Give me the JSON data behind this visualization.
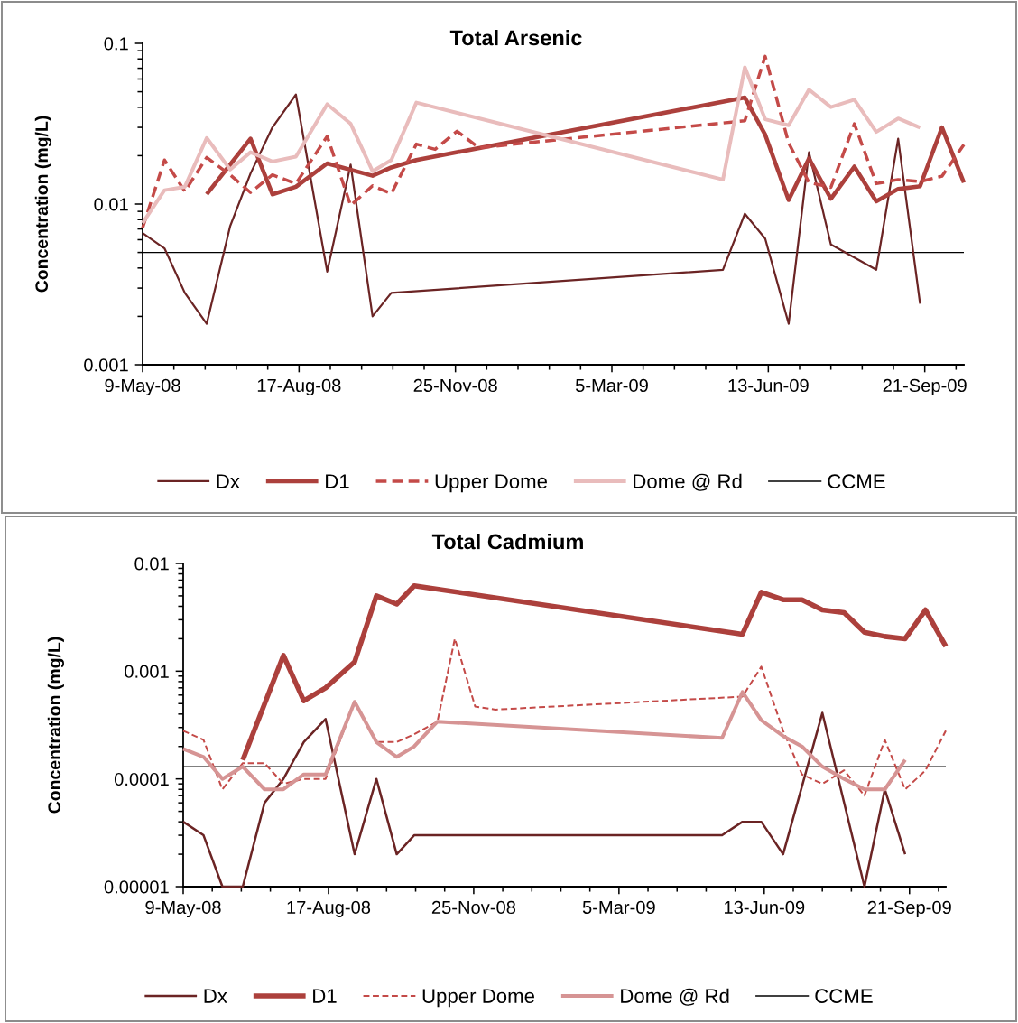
{
  "chart_data": [
    {
      "type": "line",
      "title": "Total Arsenic",
      "ylabel": "Concentration (mg/L)",
      "log": "y",
      "legend": "bottom",
      "xlim": [
        "2008-05-09",
        "2009-10-16"
      ],
      "xticks": [
        {
          "value": "2008-05-09",
          "label": "9-May-08"
        },
        {
          "value": "2008-05-29",
          "label": null
        },
        {
          "value": "2008-06-18",
          "label": null
        },
        {
          "value": "2008-07-08",
          "label": null
        },
        {
          "value": "2008-07-28",
          "label": null
        },
        {
          "value": "2008-08-17",
          "label": "17-Aug-08"
        },
        {
          "value": "2008-09-06",
          "label": null
        },
        {
          "value": "2008-09-26",
          "label": null
        },
        {
          "value": "2008-10-16",
          "label": null
        },
        {
          "value": "2008-11-05",
          "label": null
        },
        {
          "value": "2008-11-25",
          "label": "25-Nov-08"
        },
        {
          "value": "2008-12-15",
          "label": null
        },
        {
          "value": "2009-01-04",
          "label": null
        },
        {
          "value": "2009-01-24",
          "label": null
        },
        {
          "value": "2009-02-13",
          "label": null
        },
        {
          "value": "2009-03-05",
          "label": "5-Mar-09"
        },
        {
          "value": "2009-03-25",
          "label": null
        },
        {
          "value": "2009-04-14",
          "label": null
        },
        {
          "value": "2009-05-04",
          "label": null
        },
        {
          "value": "2009-05-24",
          "label": null
        },
        {
          "value": "2009-06-13",
          "label": "13-Jun-09"
        },
        {
          "value": "2009-07-03",
          "label": null
        },
        {
          "value": "2009-07-23",
          "label": null
        },
        {
          "value": "2009-08-12",
          "label": null
        },
        {
          "value": "2009-09-01",
          "label": null
        },
        {
          "value": "2009-09-21",
          "label": "21-Sep-09"
        },
        {
          "value": "2009-10-11",
          "label": null
        }
      ],
      "ylim": [
        0.001,
        0.1
      ],
      "yticks": [
        0.001,
        {
          "value": 0.002,
          "label": null
        },
        {
          "value": 0.003,
          "label": null
        },
        {
          "value": 0.004,
          "label": null
        },
        {
          "value": 0.005,
          "label": null
        },
        {
          "value": 0.006,
          "label": null
        },
        {
          "value": 0.007,
          "label": null
        },
        {
          "value": 0.008,
          "label": null
        },
        {
          "value": 0.009,
          "label": null
        },
        0.01,
        {
          "value": 0.02,
          "label": null
        },
        {
          "value": 0.03,
          "label": null
        },
        {
          "value": 0.04,
          "label": null
        },
        {
          "value": 0.05,
          "label": null
        },
        {
          "value": 0.06,
          "label": null
        },
        {
          "value": 0.07,
          "label": null
        },
        {
          "value": 0.08,
          "label": null
        },
        {
          "value": 0.09,
          "label": null
        },
        0.1
      ],
      "series": [
        {
          "name": "Dx",
          "color": "#6b2424",
          "line_style": "solid",
          "x": [
            "2008-05-09",
            "2008-05-23",
            "2008-06-05",
            "2008-06-19",
            "2008-07-04",
            "2008-07-17",
            "2008-07-31",
            "2008-08-15",
            "2008-09-04",
            "2008-09-19",
            "2008-10-03",
            "2008-10-15",
            "2009-05-15",
            "2009-05-29",
            "2009-06-11",
            "2009-06-26",
            "2009-07-09",
            "2009-07-23",
            "2009-08-21",
            "2009-09-04",
            "2009-09-18"
          ],
          "values": [
            0.0066,
            0.0053,
            0.0028,
            0.0018,
            0.0073,
            0.0155,
            0.03,
            0.048,
            0.0038,
            0.0176,
            0.002,
            0.0028,
            0.0039,
            0.0087,
            0.0061,
            0.0018,
            0.021,
            0.0056,
            0.0039,
            0.0255,
            0.0024
          ]
        },
        {
          "name": "D1",
          "color": "#ac403c",
          "line_style": "solid",
          "x": [
            "2008-06-19",
            "2008-07-17",
            "2008-07-31",
            "2008-08-15",
            "2008-09-04",
            "2008-10-03",
            "2008-10-15",
            "2008-10-31",
            "2009-05-29",
            "2009-06-11",
            "2009-06-26",
            "2009-07-09",
            "2009-07-23",
            "2009-08-07",
            "2009-08-21",
            "2009-09-04",
            "2009-09-18",
            "2009-10-02",
            "2009-10-16"
          ],
          "values": [
            0.0115,
            0.0255,
            0.0115,
            0.0128,
            0.0179,
            0.015,
            0.0169,
            0.0188,
            0.046,
            0.027,
            0.0106,
            0.0192,
            0.0108,
            0.0171,
            0.0104,
            0.0124,
            0.0129,
            0.03,
            0.0136
          ]
        },
        {
          "name": "Upper Dome",
          "color": "#c44a48",
          "line_style": "dashed",
          "x": [
            "2008-05-09",
            "2008-05-23",
            "2008-06-05",
            "2008-06-19",
            "2008-07-04",
            "2008-07-17",
            "2008-07-31",
            "2008-08-15",
            "2008-09-04",
            "2008-09-19",
            "2008-10-03",
            "2008-10-15",
            "2008-10-31",
            "2008-11-12",
            "2008-11-26",
            "2008-12-10",
            "2009-05-29",
            "2009-06-11",
            "2009-06-26",
            "2009-07-09",
            "2009-07-23",
            "2009-08-07",
            "2009-08-21",
            "2009-09-04",
            "2009-09-18",
            "2009-10-02",
            "2009-10-16"
          ],
          "values": [
            0.0071,
            0.0188,
            0.012,
            0.0195,
            0.0152,
            0.0118,
            0.0152,
            0.0134,
            0.0264,
            0.0098,
            0.013,
            0.0116,
            0.0236,
            0.0219,
            0.0284,
            0.0224,
            0.033,
            0.083,
            0.024,
            0.0136,
            0.0127,
            0.0316,
            0.0134,
            0.0142,
            0.0138,
            0.0149,
            0.0234
          ]
        },
        {
          "name": "Dome @ Rd",
          "color": "#e9bcbc",
          "line_style": "solid",
          "x": [
            "2008-05-09",
            "2008-05-23",
            "2008-06-05",
            "2008-06-19",
            "2008-07-04",
            "2008-07-17",
            "2008-07-31",
            "2008-08-15",
            "2008-09-04",
            "2008-09-19",
            "2008-10-03",
            "2008-10-15",
            "2008-10-31",
            "2009-05-15",
            "2009-05-29",
            "2009-06-11",
            "2009-06-26",
            "2009-07-09",
            "2009-07-23",
            "2009-08-07",
            "2009-08-21",
            "2009-09-04",
            "2009-09-18"
          ],
          "values": [
            0.0076,
            0.0122,
            0.0128,
            0.0258,
            0.0164,
            0.021,
            0.0184,
            0.0197,
            0.0418,
            0.0316,
            0.016,
            0.0188,
            0.0428,
            0.0142,
            0.071,
            0.0337,
            0.0309,
            0.0515,
            0.0401,
            0.0446,
            0.0281,
            0.0341,
            0.0299
          ]
        }
      ],
      "ref_lines": [
        {
          "axis": "y",
          "value": 0.005,
          "label": "CCME",
          "color": "#000000",
          "line_style": "solid"
        }
      ]
    },
    {
      "type": "line",
      "title": "Total Cadmium",
      "ylabel": "Concentration (mg/L)",
      "log": "y",
      "legend": "bottom",
      "xlim": [
        "2008-05-09",
        "2009-10-16"
      ],
      "xticks": [
        {
          "value": "2008-05-09",
          "label": "9-May-08"
        },
        {
          "value": "2008-05-29",
          "label": null
        },
        {
          "value": "2008-06-18",
          "label": null
        },
        {
          "value": "2008-07-08",
          "label": null
        },
        {
          "value": "2008-07-28",
          "label": null
        },
        {
          "value": "2008-08-17",
          "label": "17-Aug-08"
        },
        {
          "value": "2008-09-06",
          "label": null
        },
        {
          "value": "2008-09-26",
          "label": null
        },
        {
          "value": "2008-10-16",
          "label": null
        },
        {
          "value": "2008-11-05",
          "label": null
        },
        {
          "value": "2008-11-25",
          "label": "25-Nov-08"
        },
        {
          "value": "2008-12-15",
          "label": null
        },
        {
          "value": "2009-01-04",
          "label": null
        },
        {
          "value": "2009-01-24",
          "label": null
        },
        {
          "value": "2009-02-13",
          "label": null
        },
        {
          "value": "2009-03-05",
          "label": "5-Mar-09"
        },
        {
          "value": "2009-03-25",
          "label": null
        },
        {
          "value": "2009-04-14",
          "label": null
        },
        {
          "value": "2009-05-04",
          "label": null
        },
        {
          "value": "2009-05-24",
          "label": null
        },
        {
          "value": "2009-06-13",
          "label": "13-Jun-09"
        },
        {
          "value": "2009-07-03",
          "label": null
        },
        {
          "value": "2009-07-23",
          "label": null
        },
        {
          "value": "2009-08-12",
          "label": null
        },
        {
          "value": "2009-09-01",
          "label": null
        },
        {
          "value": "2009-09-21",
          "label": "21-Sep-09"
        },
        {
          "value": "2009-10-11",
          "label": null
        }
      ],
      "ylim": [
        1e-05,
        0.01
      ],
      "yticks": [
        {
          "value": 1e-05,
          "label": "0.00001"
        },
        {
          "value": 2e-05,
          "label": null
        },
        {
          "value": 3e-05,
          "label": null
        },
        {
          "value": 4e-05,
          "label": null
        },
        {
          "value": 5e-05,
          "label": null
        },
        {
          "value": 6e-05,
          "label": null
        },
        {
          "value": 7e-05,
          "label": null
        },
        {
          "value": 8e-05,
          "label": null
        },
        {
          "value": 9e-05,
          "label": null
        },
        {
          "value": 0.0001,
          "label": "0.0001"
        },
        {
          "value": 0.0002,
          "label": null
        },
        {
          "value": 0.0003,
          "label": null
        },
        {
          "value": 0.0004,
          "label": null
        },
        {
          "value": 0.0005,
          "label": null
        },
        {
          "value": 0.0006,
          "label": null
        },
        {
          "value": 0.0007,
          "label": null
        },
        {
          "value": 0.0008,
          "label": null
        },
        {
          "value": 0.0009,
          "label": null
        },
        {
          "value": 0.001,
          "label": "0.001"
        },
        {
          "value": 0.002,
          "label": null
        },
        {
          "value": 0.003,
          "label": null
        },
        {
          "value": 0.004,
          "label": null
        },
        {
          "value": 0.005,
          "label": null
        },
        {
          "value": 0.006,
          "label": null
        },
        {
          "value": 0.007,
          "label": null
        },
        {
          "value": 0.008,
          "label": null
        },
        {
          "value": 0.009,
          "label": null
        },
        {
          "value": 0.01,
          "label": "0.01"
        }
      ],
      "series": [
        {
          "name": "Dx",
          "color": "#6b2424",
          "line_style": "solid",
          "x": [
            "2008-05-09",
            "2008-05-23",
            "2008-06-05",
            "2008-06-19",
            "2008-07-04",
            "2008-07-17",
            "2008-07-31",
            "2008-08-15",
            "2008-09-04",
            "2008-09-19",
            "2008-10-03",
            "2008-10-15",
            "2009-05-15",
            "2009-05-29",
            "2009-06-11",
            "2009-06-26",
            "2009-07-23",
            "2009-08-21",
            "2009-09-04",
            "2009-09-18"
          ],
          "values": [
            4e-05,
            3e-05,
            1e-05,
            1e-05,
            6e-05,
            0.0001,
            0.00022,
            0.00036,
            2e-05,
            0.0001,
            2e-05,
            3e-05,
            3e-05,
            4e-05,
            4e-05,
            2e-05,
            0.00041,
            1e-05,
            8e-05,
            2e-05
          ]
        },
        {
          "name": "D1",
          "color": "#ac403c",
          "line_style": "solid",
          "x": [
            "2008-06-19",
            "2008-07-17",
            "2008-07-31",
            "2008-08-15",
            "2008-09-04",
            "2008-09-19",
            "2008-10-03",
            "2008-10-15",
            "2009-05-29",
            "2009-06-11",
            "2009-06-26",
            "2009-07-09",
            "2009-07-23",
            "2009-08-07",
            "2009-08-21",
            "2009-09-04",
            "2009-09-18",
            "2009-10-02",
            "2009-10-16"
          ],
          "values": [
            0.00015,
            0.0014,
            0.00053,
            0.0007,
            0.00122,
            0.005,
            0.0042,
            0.0062,
            0.0022,
            0.0054,
            0.0046,
            0.0046,
            0.0037,
            0.0035,
            0.0023,
            0.0021,
            0.002,
            0.0037,
            0.0017
          ]
        },
        {
          "name": "Upper Dome",
          "color": "#c44a48",
          "line_style": "dashed",
          "x": [
            "2008-05-09",
            "2008-05-23",
            "2008-06-05",
            "2008-06-19",
            "2008-07-04",
            "2008-07-17",
            "2008-07-31",
            "2008-08-15",
            "2008-09-04",
            "2008-09-19",
            "2008-10-03",
            "2008-10-15",
            "2008-10-31",
            "2008-11-12",
            "2008-11-26",
            "2008-12-10",
            "2009-05-29",
            "2009-06-11",
            "2009-06-26",
            "2009-07-09",
            "2009-07-23",
            "2009-08-07",
            "2009-08-21",
            "2009-09-04",
            "2009-09-18",
            "2009-10-02",
            "2009-10-16"
          ],
          "values": [
            0.00028,
            0.00023,
            8e-05,
            0.00014,
            0.00014,
            9e-05,
            0.0001,
            0.0001,
            0.00052,
            0.00022,
            0.00022,
            0.00026,
            0.00034,
            0.002,
            0.00047,
            0.00044,
            0.00058,
            0.0011,
            0.00028,
            0.00011,
            9e-05,
            0.00012,
            7e-05,
            0.00023,
            8e-05,
            0.00012,
            0.00028
          ]
        },
        {
          "name": "Dome @ Rd",
          "color": "#d69494",
          "line_style": "solid",
          "x": [
            "2008-05-09",
            "2008-05-23",
            "2008-06-05",
            "2008-06-19",
            "2008-07-04",
            "2008-07-17",
            "2008-07-31",
            "2008-08-15",
            "2008-09-04",
            "2008-09-19",
            "2008-10-03",
            "2008-10-15",
            "2008-10-31",
            "2009-05-15",
            "2009-05-29",
            "2009-06-11",
            "2009-06-26",
            "2009-07-09",
            "2009-07-23",
            "2009-08-07",
            "2009-08-21",
            "2009-09-04",
            "2009-09-18"
          ],
          "values": [
            0.00019,
            0.00016,
            0.0001,
            0.00013,
            8e-05,
            8e-05,
            0.00011,
            0.00011,
            0.00052,
            0.00022,
            0.00016,
            0.0002,
            0.00034,
            0.00024,
            0.00064,
            0.00035,
            0.00025,
            0.0002,
            0.00013,
            0.0001,
            8e-05,
            8e-05,
            0.00015
          ]
        }
      ],
      "ref_lines": [
        {
          "axis": "y",
          "value": 0.00013,
          "label": "CCME",
          "color": "#000000",
          "line_style": "solid"
        }
      ]
    }
  ]
}
